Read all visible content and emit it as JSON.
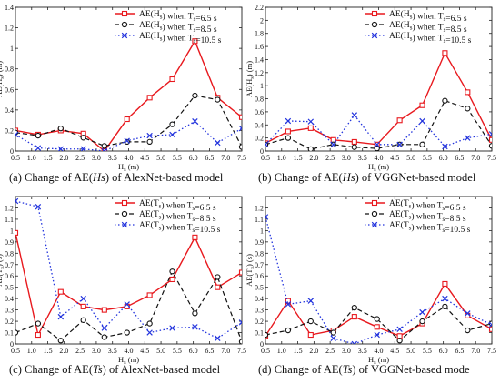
{
  "colors": {
    "red": "#e8191e",
    "black": "#111111",
    "blue": "#2233dd"
  },
  "chart_data": [
    {
      "type": "line",
      "xlabel": "Hs (m)",
      "ylabel": "AE(Hs) (m)",
      "xlim": [
        0.5,
        7.5
      ],
      "ylim": [
        0,
        1.4
      ],
      "xticks": [
        0.5,
        1.0,
        1.5,
        2.0,
        2.5,
        3.0,
        3.5,
        4.0,
        4.5,
        5.0,
        5.5,
        6.0,
        6.5,
        7.0,
        7.5
      ],
      "yticks": [
        0,
        0.2,
        0.4,
        0.6,
        0.8,
        1.0,
        1.2,
        1.4
      ],
      "legend_position": "top-right",
      "caption_prefix": "(a) Change of AE(",
      "caption_var": "Hs",
      "caption_suffix": ") of AlexNet-based model",
      "series": [
        {
          "name": "AE(Hs) when Ts=6.5 s",
          "style": "red-square-solid",
          "x": [
            0.5,
            1.2,
            1.9,
            2.6,
            3.25,
            3.95,
            4.65,
            5.35,
            6.05,
            6.75,
            7.5
          ],
          "y": [
            0.2,
            0.16,
            0.2,
            0.17,
            0.0,
            0.31,
            0.52,
            0.7,
            1.07,
            0.52,
            0.33
          ]
        },
        {
          "name": "AE(Hs) when Ts=8.5 s",
          "style": "black-circle-dash",
          "x": [
            0.5,
            1.2,
            1.9,
            2.6,
            3.25,
            3.95,
            4.65,
            5.35,
            6.05,
            6.75,
            7.5
          ],
          "y": [
            0.18,
            0.15,
            0.22,
            0.13,
            0.05,
            0.09,
            0.09,
            0.26,
            0.54,
            0.5,
            0.04
          ]
        },
        {
          "name": "AE(Hs) when Ts=10.5 s",
          "style": "blue-x-dot",
          "x": [
            0.5,
            1.2,
            1.9,
            2.6,
            3.25,
            3.95,
            4.65,
            5.35,
            6.05,
            6.75,
            7.5
          ],
          "y": [
            0.16,
            0.03,
            0.02,
            0.02,
            0.0,
            0.1,
            0.15,
            0.16,
            0.29,
            0.08,
            0.22
          ]
        }
      ]
    },
    {
      "type": "line",
      "xlabel": "Hs (m)",
      "ylabel": "AE(Hs) (m)",
      "xlim": [
        0.5,
        7.5
      ],
      "ylim": [
        0,
        2.2
      ],
      "xticks": [
        0.5,
        1.0,
        1.5,
        2.0,
        2.5,
        3.0,
        3.5,
        4.0,
        4.5,
        5.0,
        5.5,
        6.0,
        6.5,
        7.0,
        7.5
      ],
      "yticks": [
        0,
        0.2,
        0.4,
        0.6,
        0.8,
        1.0,
        1.2,
        1.4,
        1.6,
        1.8,
        2.0,
        2.2
      ],
      "legend_position": "top-right",
      "caption_prefix": "(b) Change of AE(",
      "caption_var": "Hs",
      "caption_suffix": ") of VGGNet-based model",
      "series": [
        {
          "name": "AE(Hs) when Ts=6.5 s",
          "style": "red-square-solid",
          "x": [
            0.5,
            1.2,
            1.9,
            2.6,
            3.25,
            3.95,
            4.65,
            5.35,
            6.05,
            6.75,
            7.5
          ],
          "y": [
            0.12,
            0.3,
            0.35,
            0.17,
            0.14,
            0.1,
            0.47,
            0.7,
            1.5,
            0.9,
            0.17
          ]
        },
        {
          "name": "AE(Hs) when Ts=8.5 s",
          "style": "black-circle-dash",
          "x": [
            0.5,
            1.2,
            1.9,
            2.6,
            3.25,
            3.95,
            4.65,
            5.35,
            6.05,
            6.75,
            7.5
          ],
          "y": [
            0.1,
            0.2,
            0.03,
            0.1,
            0.06,
            0.04,
            0.1,
            0.1,
            0.77,
            0.65,
            0.08
          ]
        },
        {
          "name": "AE(Hs) when Ts=10.5 s",
          "style": "blue-x-dot",
          "x": [
            0.5,
            1.2,
            1.9,
            2.6,
            3.25,
            3.95,
            4.65,
            5.35,
            6.05,
            6.75,
            7.5
          ],
          "y": [
            0.1,
            0.46,
            0.45,
            0.1,
            0.55,
            0.1,
            0.1,
            0.46,
            0.07,
            0.2,
            0.26
          ]
        }
      ]
    },
    {
      "type": "line",
      "xlabel": "Hs (m)",
      "ylabel": "AE(Ts) (s)",
      "xlim": [
        0.5,
        7.5
      ],
      "ylim": [
        0,
        1.3
      ],
      "xticks": [
        0.5,
        1.0,
        1.5,
        2.0,
        2.5,
        3.0,
        3.5,
        4.0,
        4.5,
        5.0,
        5.5,
        6.0,
        6.5,
        7.0,
        7.5
      ],
      "yticks": [
        0,
        0.1,
        0.2,
        0.3,
        0.4,
        0.5,
        0.6,
        0.7,
        0.8,
        0.9,
        1.0,
        1.1,
        1.2
      ],
      "legend_position": "top-right",
      "caption_prefix": "(c) Change of AE(",
      "caption_var": "Ts",
      "caption_suffix": ") of AlexNet-based model",
      "series": [
        {
          "name": "AE(Ts) when Ts=6.5 s",
          "style": "red-square-solid",
          "x": [
            0.5,
            1.2,
            1.9,
            2.6,
            3.25,
            3.95,
            4.65,
            5.35,
            6.05,
            6.75,
            7.5
          ],
          "y": [
            0.98,
            0.08,
            0.46,
            0.33,
            0.3,
            0.33,
            0.43,
            0.57,
            0.94,
            0.5,
            0.63
          ]
        },
        {
          "name": "AE(Ts) when Ts=8.5 s",
          "style": "black-circle-dash",
          "x": [
            0.5,
            1.2,
            1.9,
            2.6,
            3.25,
            3.95,
            4.65,
            5.35,
            6.05,
            6.75,
            7.5
          ],
          "y": [
            0.1,
            0.18,
            0.03,
            0.21,
            0.06,
            0.1,
            0.18,
            0.64,
            0.27,
            0.59,
            0.02
          ]
        },
        {
          "name": "AE(Ts) when Ts=10.5 s",
          "style": "blue-x-dot",
          "x": [
            0.5,
            1.2,
            1.9,
            2.6,
            3.25,
            3.95,
            4.65,
            5.35,
            6.05,
            6.75,
            7.5
          ],
          "y": [
            1.26,
            1.21,
            0.24,
            0.4,
            0.14,
            0.35,
            0.1,
            0.14,
            0.15,
            0.05,
            0.19
          ]
        }
      ]
    },
    {
      "type": "line",
      "xlabel": "Hs (m)",
      "ylabel": "AE(Ts) (s)",
      "xlim": [
        0.5,
        7.5
      ],
      "ylim": [
        0,
        1.3
      ],
      "xticks": [
        0.5,
        1.0,
        1.5,
        2.0,
        2.5,
        3.0,
        3.5,
        4.0,
        4.5,
        5.0,
        5.5,
        6.0,
        6.5,
        7.0,
        7.5
      ],
      "yticks": [
        0,
        0.1,
        0.2,
        0.3,
        0.4,
        0.5,
        0.6,
        0.7,
        0.8,
        0.9,
        1.0,
        1.1,
        1.2
      ],
      "legend_position": "top-right",
      "caption_prefix": "(d) Change of AE(",
      "caption_var": "Ts",
      "caption_suffix": ") of VGGNet-based mode",
      "series": [
        {
          "name": "AE(Ts) when Ts=6.5 s",
          "style": "red-square-solid",
          "x": [
            0.5,
            1.2,
            1.9,
            2.6,
            3.25,
            3.95,
            4.65,
            5.35,
            6.05,
            6.75,
            7.5
          ],
          "y": [
            0.07,
            0.38,
            0.08,
            0.12,
            0.24,
            0.15,
            0.07,
            0.18,
            0.53,
            0.25,
            0.13
          ]
        },
        {
          "name": "AE(Ts) when Ts=8.5 s",
          "style": "black-circle-dash",
          "x": [
            0.5,
            1.2,
            1.9,
            2.6,
            3.25,
            3.95,
            4.65,
            5.35,
            6.05,
            6.75,
            7.5
          ],
          "y": [
            0.08,
            0.12,
            0.2,
            0.1,
            0.32,
            0.22,
            0.03,
            0.2,
            0.33,
            0.12,
            0.18
          ]
        },
        {
          "name": "AE(Ts) when Ts=10.5 s",
          "style": "blue-x-dot",
          "x": [
            0.5,
            1.2,
            1.9,
            2.6,
            3.25,
            3.95,
            4.65,
            5.35,
            6.05,
            6.75,
            7.5
          ],
          "y": [
            1.12,
            0.35,
            0.38,
            0.05,
            0.0,
            0.08,
            0.13,
            0.28,
            0.4,
            0.27,
            0.17
          ]
        }
      ]
    }
  ]
}
